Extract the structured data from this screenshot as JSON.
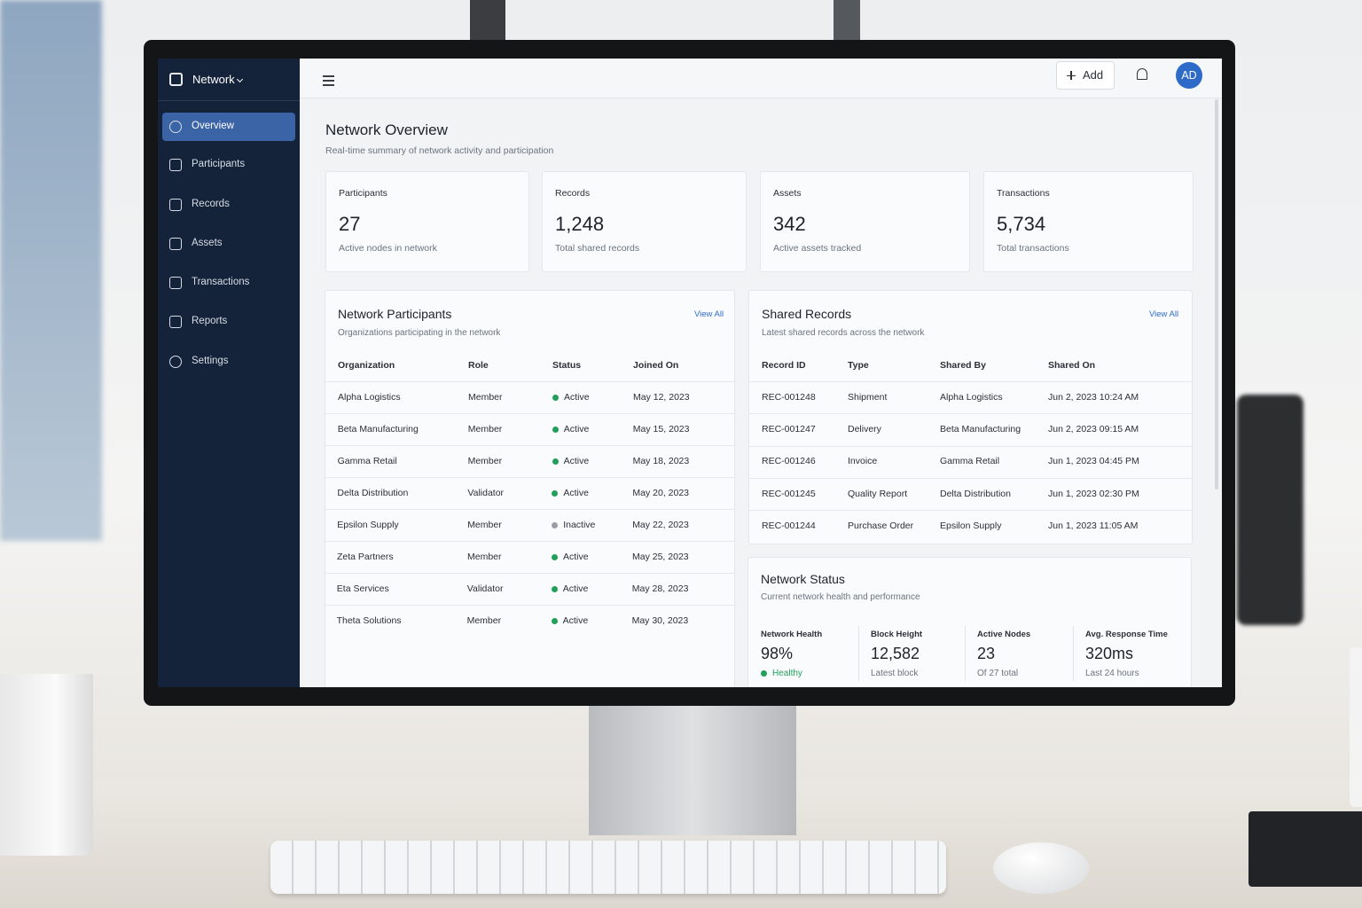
{
  "sidebar": {
    "brand": "Network",
    "nav": [
      {
        "label": "Overview",
        "active": true
      },
      {
        "label": "Participants",
        "active": false
      },
      {
        "label": "Records",
        "active": false
      },
      {
        "label": "Assets",
        "active": false
      },
      {
        "label": "Transactions",
        "active": false
      },
      {
        "label": "Reports",
        "active": false
      },
      {
        "label": "Settings",
        "active": false
      }
    ]
  },
  "topbar": {
    "add_button": "Add",
    "avatar": "AD"
  },
  "header": {
    "title": "Network Overview",
    "subtitle": "Real-time summary of network activity and participation"
  },
  "stats": [
    {
      "label": "Participants",
      "value": "27",
      "caption": "Active nodes in network"
    },
    {
      "label": "Records",
      "value": "1,248",
      "caption": "Total shared records"
    },
    {
      "label": "Assets",
      "value": "342",
      "caption": "Active assets tracked"
    },
    {
      "label": "Transactions",
      "value": "5,734",
      "caption": "Total transactions"
    }
  ],
  "participants": {
    "title": "Network Participants",
    "subtitle": "Organizations participating in the network",
    "view_all": "View All",
    "columns": [
      "Organization",
      "Role",
      "Status",
      "Joined On"
    ],
    "rows": [
      {
        "cells": [
          "Alpha Logistics",
          "Member",
          "Active",
          "May 12, 2023"
        ],
        "dot": "#22a05a"
      },
      {
        "cells": [
          "Beta Manufacturing",
          "Member",
          "Active",
          "May 15, 2023"
        ],
        "dot": "#22a05a"
      },
      {
        "cells": [
          "Gamma Retail",
          "Member",
          "Active",
          "May 18, 2023"
        ],
        "dot": "#22a05a"
      },
      {
        "cells": [
          "Delta Distribution",
          "Validator",
          "Active",
          "May 20, 2023"
        ],
        "dot": "#22a05a"
      },
      {
        "cells": [
          "Epsilon Supply",
          "Member",
          "Inactive",
          "May 22, 2023"
        ],
        "dot": "#9a9ea6"
      },
      {
        "cells": [
          "Zeta Partners",
          "Member",
          "Active",
          "May 25, 2023"
        ],
        "dot": "#22a05a"
      },
      {
        "cells": [
          "Eta Services",
          "Validator",
          "Active",
          "May 28, 2023"
        ],
        "dot": "#22a05a"
      },
      {
        "cells": [
          "Theta Solutions",
          "Member",
          "Active",
          "May 30, 2023"
        ],
        "dot": "#22a05a"
      }
    ]
  },
  "records": {
    "title": "Shared Records",
    "subtitle": "Latest shared records across the network",
    "view_all": "View All",
    "columns": [
      "Record ID",
      "Type",
      "Shared By",
      "Shared On"
    ],
    "rows": [
      [
        "REC-001248",
        "Shipment",
        "Alpha Logistics",
        "Jun 2, 2023 10:24 AM"
      ],
      [
        "REC-001247",
        "Delivery",
        "Beta Manufacturing",
        "Jun 2, 2023 09:15 AM"
      ],
      [
        "REC-001246",
        "Invoice",
        "Gamma Retail",
        "Jun 1, 2023 04:45 PM"
      ],
      [
        "REC-001245",
        "Quality Report",
        "Delta Distribution",
        "Jun 1, 2023 02:30 PM"
      ],
      [
        "REC-001244",
        "Purchase Order",
        "Epsilon Supply",
        "Jun 1, 2023 11:05 AM"
      ]
    ]
  },
  "status": {
    "title": "Network Status",
    "subtitle": "Current network health and performance",
    "metrics": [
      {
        "label": "Network Health",
        "value": "98%",
        "note": "Healthy",
        "note_color": "#22a05a"
      },
      {
        "label": "Block Height",
        "value": "12,582",
        "note": "Latest block"
      },
      {
        "label": "Active Nodes",
        "value": "23",
        "note": "Of 27 total"
      },
      {
        "label": "Avg. Response Time",
        "value": "320ms",
        "note": "Last 24 hours"
      }
    ]
  }
}
